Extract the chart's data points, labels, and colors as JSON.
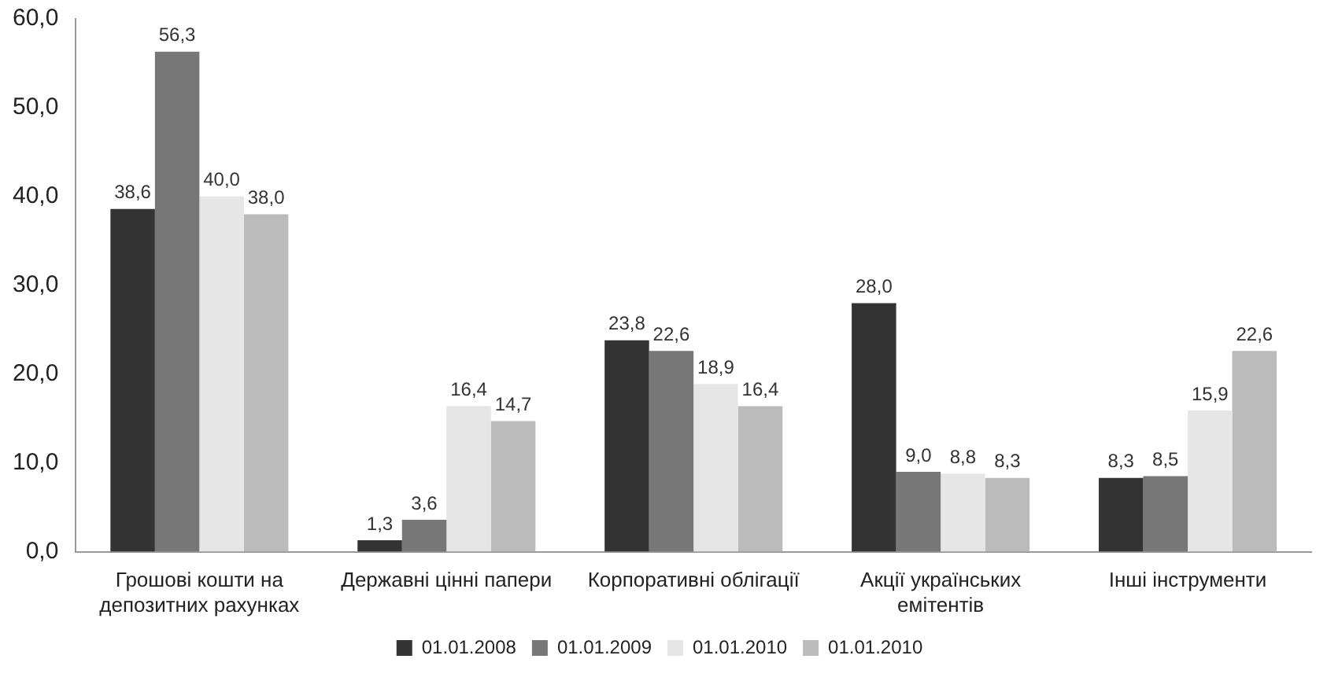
{
  "chart_data": {
    "type": "bar",
    "categories": [
      "Грошові кошти на депозитних рахунках",
      "Державні цінні папери",
      "Корпоративні облігації",
      "Акції українських емітентів",
      "Інші інструменти"
    ],
    "series": [
      {
        "name": "01.01.2008",
        "color": "#333333",
        "values": [
          38.6,
          1.3,
          23.8,
          28.0,
          8.3
        ],
        "value_labels": [
          "38,6",
          "1,3",
          "23,8",
          "28,0",
          "8,3"
        ]
      },
      {
        "name": "01.01.2009",
        "color": "#777777",
        "values": [
          56.3,
          3.6,
          22.6,
          9.0,
          8.5
        ],
        "value_labels": [
          "56,3",
          "3,6",
          "22,6",
          "9,0",
          "8,5"
        ]
      },
      {
        "name": "01.01.2010",
        "color": "#e6e6e6",
        "values": [
          40.0,
          16.4,
          18.9,
          8.8,
          15.9
        ],
        "value_labels": [
          "40,0",
          "16,4",
          "18,9",
          "8,8",
          "15,9"
        ]
      },
      {
        "name": "01.01.2010",
        "color": "#bbbbbb",
        "values": [
          38.0,
          14.7,
          16.4,
          8.3,
          22.6
        ],
        "value_labels": [
          "38,0",
          "14,7",
          "16,4",
          "8,3",
          "22,6"
        ]
      }
    ],
    "ylim": [
      0,
      60
    ],
    "yticks": [
      {
        "value": 0,
        "label": "0,0"
      },
      {
        "value": 10,
        "label": "10,0"
      },
      {
        "value": 20,
        "label": "20,0"
      },
      {
        "value": 30,
        "label": "30,0"
      },
      {
        "value": 40,
        "label": "40,0"
      },
      {
        "value": 50,
        "label": "50,0"
      },
      {
        "value": 60,
        "label": "60,0"
      }
    ],
    "grid": false,
    "legend": "bottom"
  }
}
